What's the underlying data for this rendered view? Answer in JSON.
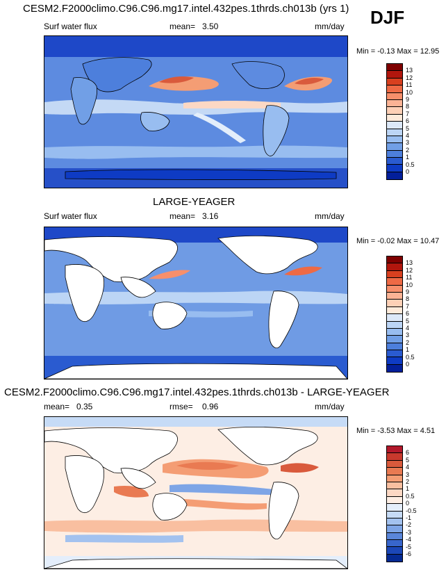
{
  "top_title": "CESM2.F2000climo.C96.C96.mg17.intel.432pes.1thrds.ch013b (yrs 1)",
  "season": "DJF",
  "panels": [
    {
      "variable": "Surf water flux",
      "stat_label": "mean=",
      "stat_value": "3.50",
      "units": "mm/day",
      "minmax": "Min = -0.13 Max = 12.95",
      "colorbar_ticks": [
        "13",
        "12",
        "11",
        "10",
        "9",
        "8",
        "7",
        "6",
        "5",
        "4",
        "3",
        "2",
        "1",
        "0.5",
        "0"
      ],
      "colorbar_colors": [
        "#7f0000",
        "#b1160d",
        "#d8401f",
        "#ee6a45",
        "#f78f6b",
        "#fbb395",
        "#fdd0b6",
        "#fdeada",
        "#dce8f8",
        "#bcd5f5",
        "#98bdf0",
        "#719fe6",
        "#4d7fdc",
        "#2a5bd0",
        "#0e3bc4",
        "#031f9a"
      ]
    },
    {
      "title": "LARGE-YEAGER",
      "variable": "Surf water flux",
      "stat_label": "mean=",
      "stat_value": "3.16",
      "units": "mm/day",
      "minmax": "Min =  -0.02 Max = 10.47",
      "colorbar_ticks": [
        "13",
        "12",
        "11",
        "10",
        "9",
        "8",
        "7",
        "6",
        "5",
        "4",
        "3",
        "2",
        "1",
        "0.5",
        "0"
      ],
      "colorbar_colors": [
        "#7f0000",
        "#b1160d",
        "#d8401f",
        "#ee6a45",
        "#f78f6b",
        "#fbb395",
        "#fdd0b6",
        "#fdeada",
        "#dce8f8",
        "#bcd5f5",
        "#98bdf0",
        "#719fe6",
        "#4d7fdc",
        "#2a5bd0",
        "#0e3bc4",
        "#031f9a"
      ]
    },
    {
      "title": "CESM2.F2000climo.C96.C96.mg17.intel.432pes.1thrds.ch013b - LARGE-YEAGER",
      "stat_label": "mean=",
      "stat_value": "0.35",
      "rmse_label": "rmse=",
      "rmse_value": "0.96",
      "units": "mm/day",
      "minmax": "Min = -3.53 Max =  4.51",
      "colorbar_ticks": [
        "6",
        "5",
        "4",
        "3",
        "2",
        "1",
        "0.5",
        "0",
        "-0.5",
        "-1",
        "-2",
        "-3",
        "-4",
        "-5",
        "-6"
      ],
      "colorbar_colors": [
        "#b2182b",
        "#c8392d",
        "#d95a3c",
        "#e97a52",
        "#f49d74",
        "#f9bfa0",
        "#fcd8c4",
        "#fdeee4",
        "#e4eefb",
        "#c6dbf6",
        "#a3c2ef",
        "#7ea5e6",
        "#5a86da",
        "#3866cc",
        "#1b47b8",
        "#052a93"
      ]
    }
  ]
}
